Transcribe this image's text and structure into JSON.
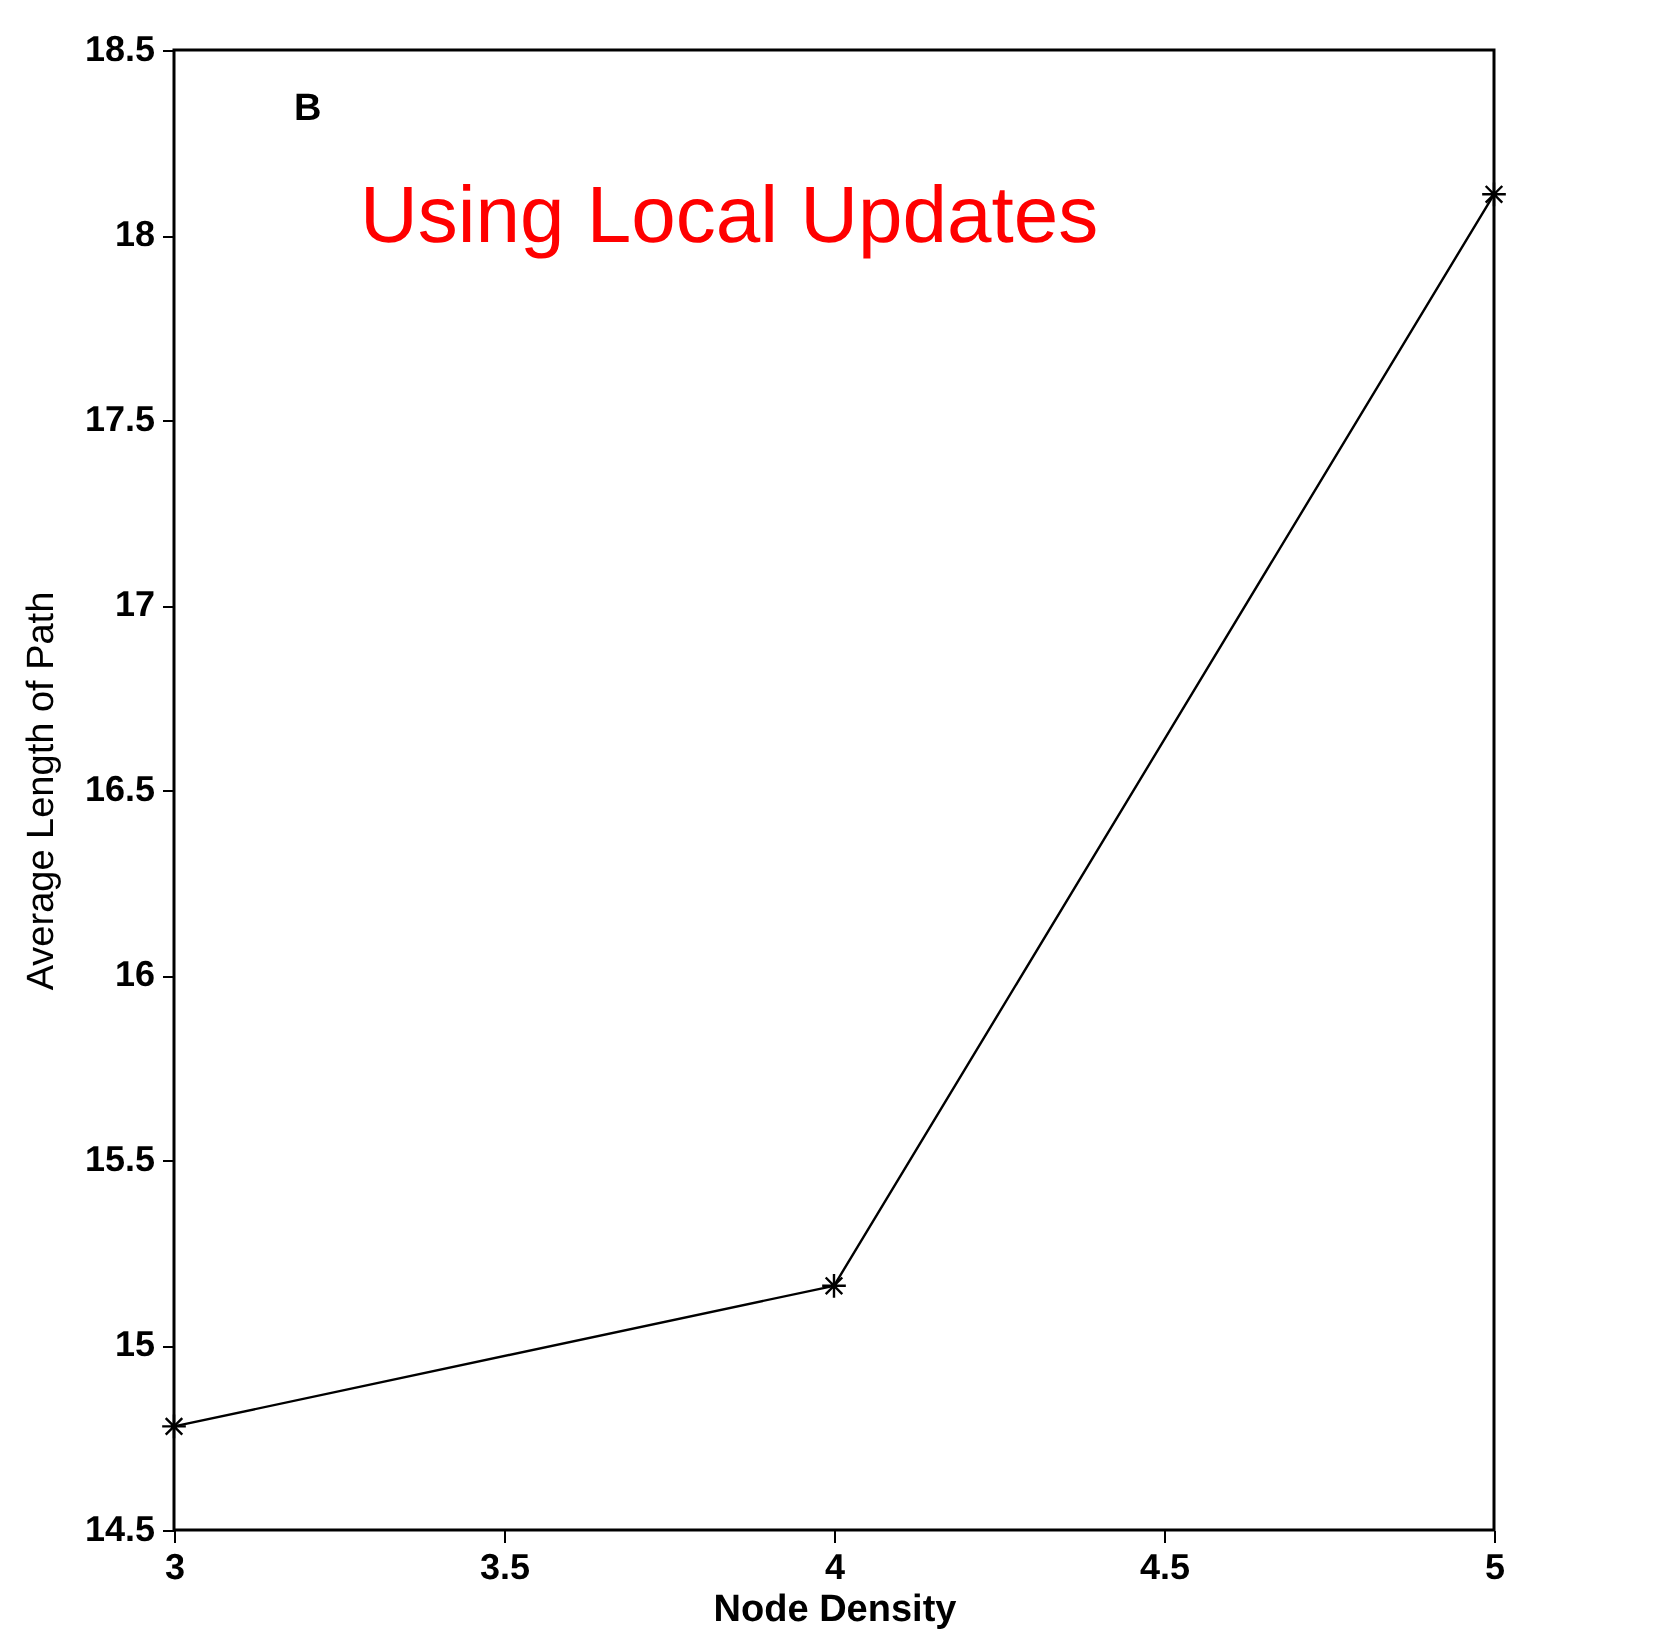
{
  "chart_data": {
    "type": "line",
    "xlabel": "Node Density",
    "ylabel": "Average Length of Path",
    "annotations": [
      "B",
      "Using Local Updates"
    ],
    "x": [
      3,
      4,
      5
    ],
    "series": [
      {
        "color": "#000000",
        "values": [
          14.78,
          15.16,
          18.11
        ]
      }
    ],
    "xlim": [
      3,
      5
    ],
    "xticks": [
      3,
      3.5,
      4,
      4.5,
      5
    ],
    "ylim": [
      14.5,
      18.5
    ],
    "yticks": [
      14.5,
      15,
      15.5,
      16,
      16.5,
      17,
      17.5,
      18,
      18.5
    ],
    "marker": "cross",
    "line_style": "solid",
    "grid": false
  }
}
